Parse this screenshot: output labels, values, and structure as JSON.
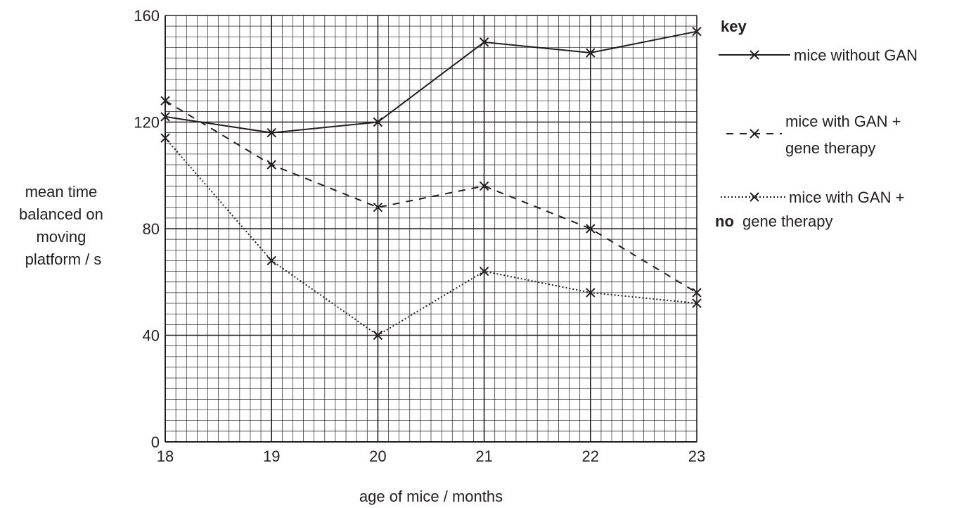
{
  "chart_data": {
    "type": "line",
    "x": [
      18,
      19,
      20,
      21,
      22,
      23
    ],
    "xlim": [
      18,
      23
    ],
    "ylim": [
      0,
      160
    ],
    "x_ticks": [
      "18",
      "19",
      "20",
      "21",
      "22",
      "23"
    ],
    "y_ticks": [
      "0",
      "40",
      "80",
      "120",
      "160"
    ],
    "xlabel": "age of mice / months",
    "ylabel_lines": [
      "mean time",
      "balanced on",
      "moving",
      "platform / s"
    ],
    "grid": true,
    "legend_position": "right",
    "legend_title": "key",
    "series": [
      {
        "name": "mice without GAN",
        "line_style": "solid",
        "values": [
          122,
          116,
          120,
          150,
          146,
          154
        ]
      },
      {
        "name": "mice with GAN + gene therapy",
        "legend_lines": [
          "mice with GAN +",
          "gene therapy"
        ],
        "line_style": "dashed",
        "values": [
          128,
          104,
          88,
          96,
          80,
          56
        ]
      },
      {
        "name": "mice with GAN + no gene therapy",
        "legend_lines": [
          "mice with GAN +",
          "no",
          "gene therapy"
        ],
        "line_style": "dotted",
        "values": [
          114,
          68,
          40,
          64,
          56,
          52
        ]
      }
    ],
    "colors": {
      "ink": "#231f20",
      "background": "#ffffff"
    }
  }
}
